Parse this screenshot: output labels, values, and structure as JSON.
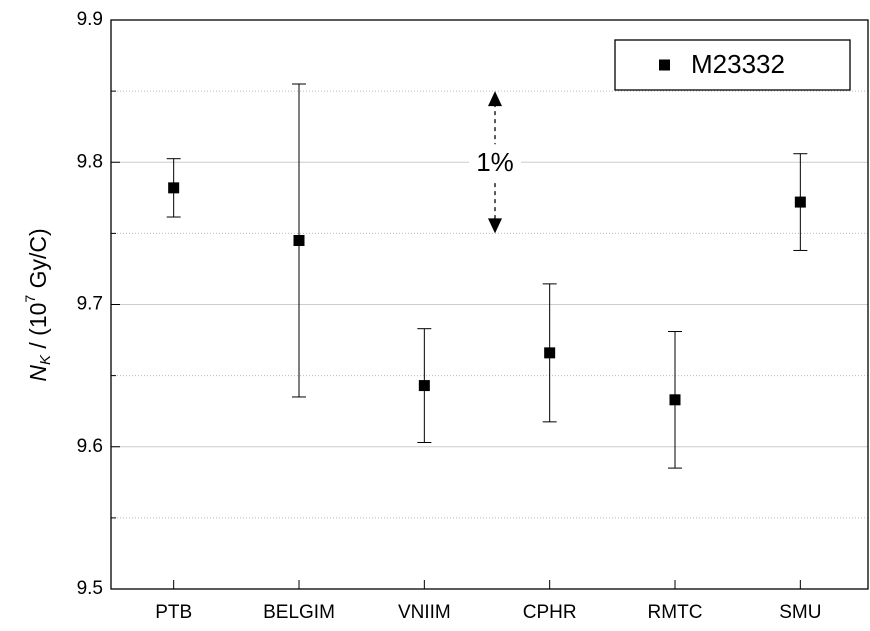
{
  "chart_data": {
    "type": "errorbar",
    "categories": [
      "PTB",
      "BELGIM",
      "VNIIM",
      "CPHR",
      "RMTC",
      "SMU"
    ],
    "series": [
      {
        "name": "M23332",
        "color": "#000000",
        "values": [
          9.782,
          9.745,
          9.643,
          9.666,
          9.633,
          9.772
        ],
        "errors": [
          0.0205,
          0.11,
          0.04,
          0.0485,
          0.048,
          0.034
        ]
      }
    ],
    "ylabel": {
      "symbol": "N",
      "subscript": "K",
      "text": " / (10",
      "superscript": "7",
      "unit": " Gy/C)"
    },
    "ylim": [
      9.5,
      9.9
    ],
    "yticks": [
      9.5,
      9.6,
      9.7,
      9.8,
      9.9
    ],
    "minor_yticks": [
      9.55,
      9.65,
      9.75,
      9.85
    ],
    "grid": true,
    "legend": "upper right",
    "annotation": {
      "text": "1%",
      "span": [
        9.75,
        9.85
      ]
    }
  }
}
